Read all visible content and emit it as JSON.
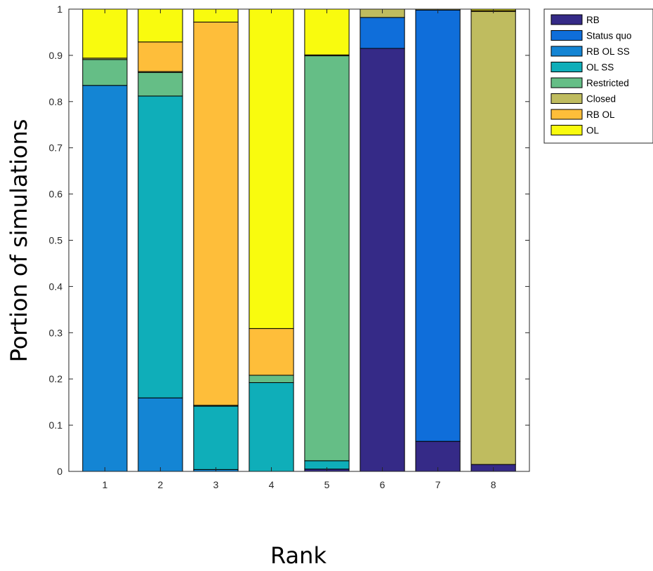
{
  "chart_data": {
    "type": "bar",
    "stacked": true,
    "title": "",
    "xlabel": "Rank",
    "ylabel": "Portion of simulations",
    "ylim": [
      0,
      1
    ],
    "yticks": [
      "0",
      "0.1",
      "0.2",
      "0.3",
      "0.4",
      "0.5",
      "0.6",
      "0.7",
      "0.8",
      "0.9",
      "1"
    ],
    "categories": [
      "1",
      "2",
      "3",
      "4",
      "5",
      "6",
      "7",
      "8"
    ],
    "grid": false,
    "legend_position": "outside-top-right",
    "series": [
      {
        "name": "RB",
        "color": "#352A87",
        "values": [
          0.0,
          0.0,
          0.0,
          0.0,
          0.005,
          0.915,
          0.065,
          0.015
        ]
      },
      {
        "name": "Status quo",
        "color": "#0F6EDA",
        "values": [
          0.0,
          0.0,
          0.0,
          0.0,
          0.0,
          0.067,
          0.933,
          0.0
        ]
      },
      {
        "name": "RB OL SS",
        "color": "#1485D4",
        "values": [
          0.835,
          0.159,
          0.004,
          0.0,
          0.0,
          0.0,
          0.0,
          0.0
        ]
      },
      {
        "name": "OL SS",
        "color": "#0FAEB9",
        "values": [
          0.0,
          0.653,
          0.137,
          0.192,
          0.018,
          0.0,
          0.0,
          0.0
        ]
      },
      {
        "name": "Restricted",
        "color": "#65BE86",
        "values": [
          0.056,
          0.051,
          0.002,
          0.016,
          0.876,
          0.0,
          0.0,
          0.0
        ]
      },
      {
        "name": "Closed",
        "color": "#BFBC5F",
        "values": [
          0.003,
          0.002,
          0.0,
          0.0,
          0.002,
          0.018,
          0.002,
          0.98
        ]
      },
      {
        "name": "RB OL",
        "color": "#FEBE3A",
        "values": [
          0.0,
          0.064,
          0.829,
          0.101,
          0.0,
          0.0,
          0.0,
          0.002
        ]
      },
      {
        "name": "OL",
        "color": "#F9FB0E",
        "values": [
          0.106,
          0.071,
          0.028,
          0.691,
          0.099,
          0.0,
          0.0,
          0.003
        ]
      }
    ]
  }
}
